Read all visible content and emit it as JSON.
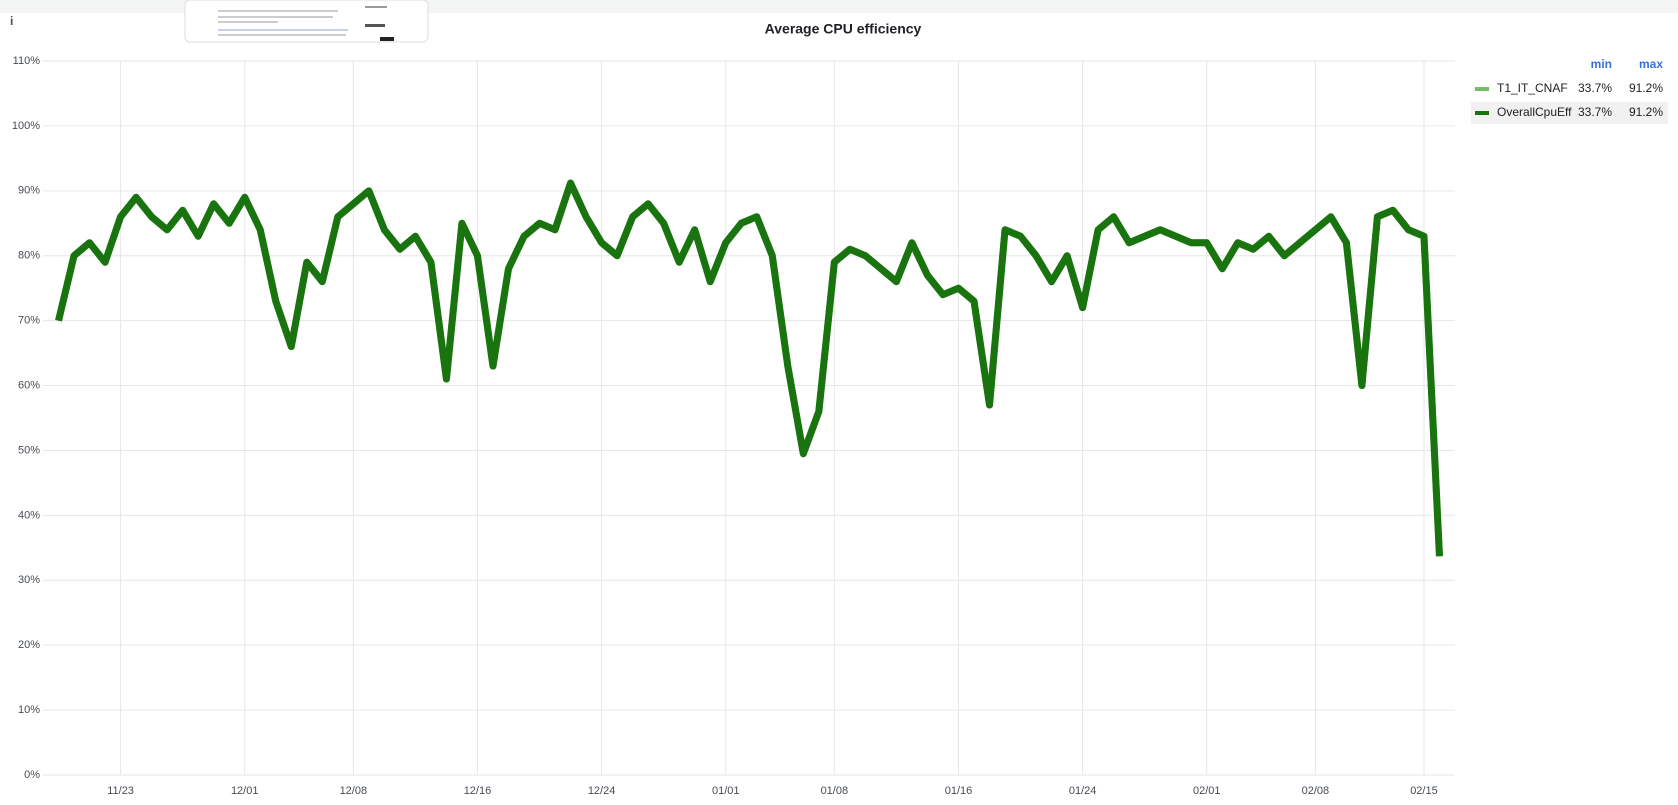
{
  "chart_data": {
    "type": "line",
    "title": "Average CPU efficiency",
    "x": [
      "11/19",
      "11/20",
      "11/21",
      "11/22",
      "11/23",
      "11/24",
      "11/25",
      "11/26",
      "11/27",
      "11/28",
      "11/29",
      "11/30",
      "12/01",
      "12/02",
      "12/03",
      "12/04",
      "12/05",
      "12/06",
      "12/07",
      "12/08",
      "12/09",
      "12/10",
      "12/11",
      "12/12",
      "12/13",
      "12/14",
      "12/15",
      "12/16",
      "12/17",
      "12/18",
      "12/19",
      "12/20",
      "12/21",
      "12/22",
      "12/23",
      "12/24",
      "12/25",
      "12/26",
      "12/27",
      "12/28",
      "12/29",
      "12/30",
      "12/31",
      "01/01",
      "01/02",
      "01/03",
      "01/04",
      "01/05",
      "01/06",
      "01/07",
      "01/08",
      "01/09",
      "01/10",
      "01/11",
      "01/12",
      "01/13",
      "01/14",
      "01/15",
      "01/16",
      "01/17",
      "01/18",
      "01/19",
      "01/20",
      "01/21",
      "01/22",
      "01/23",
      "01/24",
      "01/25",
      "01/26",
      "01/27",
      "01/28",
      "01/29",
      "01/30",
      "01/31",
      "02/01",
      "02/02",
      "02/03",
      "02/04",
      "02/05",
      "02/06",
      "02/07",
      "02/08",
      "02/09",
      "02/10",
      "02/11",
      "02/12",
      "02/13",
      "02/14",
      "02/15",
      "02/16"
    ],
    "series": [
      {
        "name": "T1_IT_CNAF",
        "color": "#73bf69",
        "min": "33.7%",
        "max": "91.2%",
        "values": [
          70,
          80,
          82,
          79,
          86,
          89,
          86,
          84,
          87,
          83,
          88,
          85,
          89,
          84,
          73,
          66,
          79,
          76,
          86,
          88,
          90,
          84,
          81,
          83,
          79,
          61,
          85,
          80,
          63,
          78,
          83,
          85,
          84,
          91.2,
          86,
          82,
          80,
          86,
          88,
          85,
          79,
          84,
          76,
          82,
          85,
          86,
          80,
          63,
          49.5,
          56,
          79,
          81,
          80,
          78,
          76,
          82,
          77,
          74,
          75,
          73,
          57,
          84,
          83,
          80,
          76,
          80,
          72,
          84,
          86,
          82,
          83,
          84,
          83,
          82,
          82,
          78,
          82,
          81,
          83,
          80,
          82,
          84,
          86,
          82,
          60,
          86,
          87,
          84,
          83,
          33.7
        ]
      },
      {
        "name": "OverallCpuEff",
        "color": "#19730e",
        "min": "33.7%",
        "max": "91.2%",
        "values": [
          70,
          80,
          82,
          79,
          86,
          89,
          86,
          84,
          87,
          83,
          88,
          85,
          89,
          84,
          73,
          66,
          79,
          76,
          86,
          88,
          90,
          84,
          81,
          83,
          79,
          61,
          85,
          80,
          63,
          78,
          83,
          85,
          84,
          91.2,
          86,
          82,
          80,
          86,
          88,
          85,
          79,
          84,
          76,
          82,
          85,
          86,
          80,
          63,
          49.5,
          56,
          79,
          81,
          80,
          78,
          76,
          82,
          77,
          74,
          75,
          73,
          57,
          84,
          83,
          80,
          76,
          80,
          72,
          84,
          86,
          82,
          83,
          84,
          83,
          82,
          82,
          78,
          82,
          81,
          83,
          80,
          82,
          84,
          86,
          82,
          60,
          86,
          87,
          84,
          83,
          33.7
        ]
      }
    ],
    "legend_headers": [
      "min",
      "max"
    ],
    "xlim": [
      "11/18",
      "02/17"
    ],
    "xticks": [
      "11/23",
      "12/01",
      "12/08",
      "12/16",
      "12/24",
      "01/01",
      "01/08",
      "01/16",
      "01/24",
      "02/01",
      "02/08",
      "02/15"
    ],
    "ylim": [
      0,
      110
    ],
    "yticks": [
      {
        "value": 0,
        "label": "0%"
      },
      {
        "value": 10,
        "label": "10%"
      },
      {
        "value": 20,
        "label": "20%"
      },
      {
        "value": 30,
        "label": "30%"
      },
      {
        "value": 40,
        "label": "40%"
      },
      {
        "value": 50,
        "label": "50%"
      },
      {
        "value": 60,
        "label": "60%"
      },
      {
        "value": 70,
        "label": "70%"
      },
      {
        "value": 80,
        "label": "80%"
      },
      {
        "value": 90,
        "label": "90%"
      },
      {
        "value": 100,
        "label": "100%"
      },
      {
        "value": 110,
        "label": "110%"
      }
    ],
    "grid": true,
    "legend_position": "right"
  }
}
